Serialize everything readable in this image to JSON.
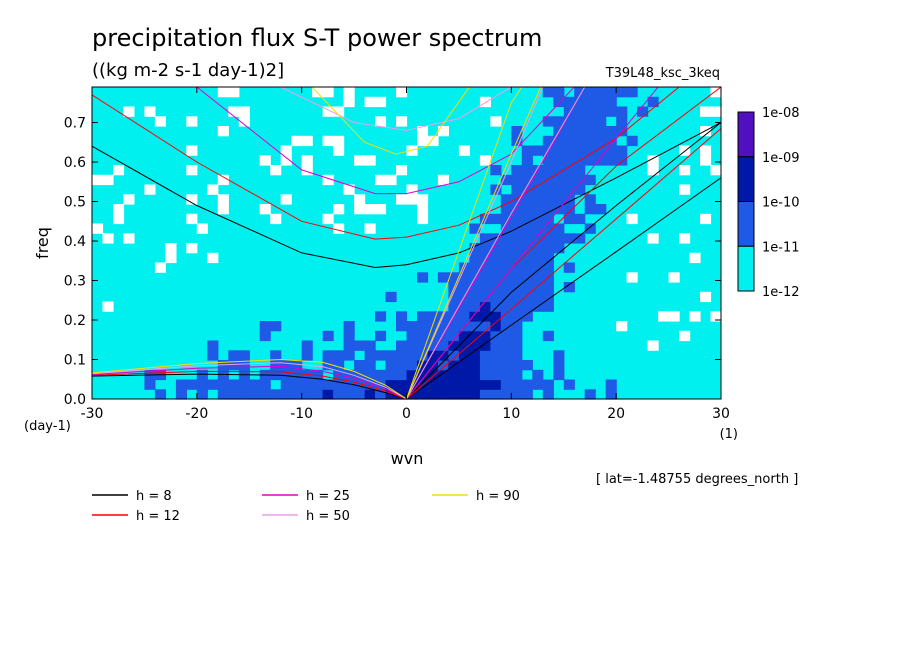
{
  "chart_data": {
    "type": "heatmap",
    "title": "precipitation flux S-T power spectrum",
    "subtitle": "((kg m-2 s-1 day-1)2]",
    "run_label": "T39L48_ksc_3keq",
    "xlabel": "wvn",
    "ylabel": "freq",
    "x_unit_label": "(1)",
    "y_unit_label": "(day-1)",
    "xlim": [
      -30,
      30
    ],
    "ylim": [
      0,
      0.79
    ],
    "x_ticks": [
      -30,
      -20,
      -10,
      0,
      10,
      20,
      30
    ],
    "x_tick_labels": [
      "-30",
      "-20",
      "-10",
      "0",
      "10",
      "20",
      "30"
    ],
    "y_ticks": [
      0,
      0.1,
      0.2,
      0.3,
      0.4,
      0.5,
      0.6,
      0.7
    ],
    "y_tick_labels": [
      "0.0",
      "0.1",
      "0.2",
      "0.3",
      "0.4",
      "0.5",
      "0.6",
      "0.7"
    ],
    "colorbar": {
      "labels": [
        "1e-08",
        "1e-09",
        "1e-10",
        "1e-11",
        "1e-12"
      ],
      "colors": [
        "#5010c0",
        "#0018a8",
        "#1e5ae6",
        "#00f0f0"
      ]
    },
    "background_color": "#00f0f0",
    "annotation": "[ lat=-1.48755 degrees_north ]",
    "legend": [
      {
        "label": "h =  8",
        "color": "#000000"
      },
      {
        "label": "h = 12",
        "color": "#ff0000"
      },
      {
        "label": "h = 25",
        "color": "#e000c8"
      },
      {
        "label": "h = 50",
        "color": "#e8a0e8"
      },
      {
        "label": "h = 90",
        "color": "#f0e000"
      }
    ],
    "dispersion_curves": [
      {
        "h": 8,
        "color": "#000000",
        "rossby": [
          [
            -30,
            0.058
          ],
          [
            -20,
            0.063
          ],
          [
            -12,
            0.06
          ],
          [
            -8,
            0.05
          ],
          [
            -5,
            0.036
          ],
          [
            -2,
            0.016
          ],
          [
            0,
            0
          ]
        ],
        "kelvin": [
          [
            0,
            0
          ],
          [
            10,
            0.187
          ],
          [
            20,
            0.373
          ],
          [
            30,
            0.56
          ]
        ],
        "mrg": [
          [
            0,
            0
          ],
          [
            10,
            0.27
          ],
          [
            20,
            0.49
          ],
          [
            30,
            0.7
          ]
        ],
        "ig": [
          [
            -30,
            0.64
          ],
          [
            -20,
            0.49
          ],
          [
            -10,
            0.37
          ],
          [
            -3,
            0.333
          ],
          [
            0,
            0.34
          ],
          [
            5,
            0.37
          ],
          [
            10,
            0.425
          ],
          [
            20,
            0.56
          ],
          [
            30,
            0.7
          ]
        ]
      },
      {
        "h": 12,
        "color": "#ff0000",
        "rossby": [
          [
            -30,
            0.06
          ],
          [
            -20,
            0.07
          ],
          [
            -12,
            0.069
          ],
          [
            -8,
            0.058
          ],
          [
            -5,
            0.043
          ],
          [
            -2,
            0.02
          ],
          [
            0,
            0
          ]
        ],
        "kelvin": [
          [
            0,
            0
          ],
          [
            10,
            0.228
          ],
          [
            20,
            0.456
          ],
          [
            30,
            0.685
          ]
        ],
        "mrg": [
          [
            0,
            0
          ],
          [
            10,
            0.33
          ],
          [
            20,
            0.59
          ],
          [
            30,
            0.79
          ]
        ],
        "ig": [
          [
            -30,
            0.77
          ],
          [
            -20,
            0.6
          ],
          [
            -10,
            0.45
          ],
          [
            -3,
            0.405
          ],
          [
            0,
            0.41
          ],
          [
            5,
            0.44
          ],
          [
            10,
            0.5
          ],
          [
            20,
            0.66
          ],
          [
            26,
            0.79
          ]
        ]
      },
      {
        "h": 25,
        "color": "#e000c8",
        "rossby": [
          [
            -30,
            0.062
          ],
          [
            -20,
            0.078
          ],
          [
            -12,
            0.083
          ],
          [
            -8,
            0.07
          ],
          [
            -5,
            0.053
          ],
          [
            -2,
            0.025
          ],
          [
            0,
            0
          ]
        ],
        "kelvin": [
          [
            0,
            0
          ],
          [
            10,
            0.33
          ],
          [
            20,
            0.66
          ],
          [
            24,
            0.79
          ]
        ],
        "mrg": [
          [
            0,
            0
          ],
          [
            10,
            0.46
          ],
          [
            17,
            0.79
          ]
        ],
        "ig": [
          [
            -20,
            0.79
          ],
          [
            -10,
            0.58
          ],
          [
            -3,
            0.52
          ],
          [
            0,
            0.52
          ],
          [
            5,
            0.55
          ],
          [
            10,
            0.62
          ],
          [
            16,
            0.79
          ]
        ]
      },
      {
        "h": 50,
        "color": "#e8a0e8",
        "rossby": [
          [
            -30,
            0.064
          ],
          [
            -20,
            0.084
          ],
          [
            -12,
            0.092
          ],
          [
            -8,
            0.082
          ],
          [
            -5,
            0.06
          ],
          [
            -2,
            0.03
          ],
          [
            0,
            0
          ]
        ],
        "kelvin": [
          [
            0,
            0
          ],
          [
            10,
            0.47
          ],
          [
            17,
            0.79
          ]
        ],
        "mrg": [
          [
            0,
            0
          ],
          [
            10,
            0.6
          ],
          [
            13,
            0.79
          ]
        ],
        "ig": [
          [
            -12,
            0.79
          ],
          [
            -5,
            0.7
          ],
          [
            0,
            0.68
          ],
          [
            5,
            0.71
          ],
          [
            10,
            0.79
          ]
        ]
      },
      {
        "h": 90,
        "color": "#f0e000",
        "rossby": [
          [
            -30,
            0.066
          ],
          [
            -20,
            0.09
          ],
          [
            -12,
            0.1
          ],
          [
            -8,
            0.093
          ],
          [
            -5,
            0.07
          ],
          [
            -2,
            0.035
          ],
          [
            0,
            0
          ]
        ],
        "kelvin": [
          [
            0,
            0
          ],
          [
            10,
            0.62
          ],
          [
            12.8,
            0.79
          ]
        ],
        "mrg": [
          [
            0,
            0
          ],
          [
            10,
            0.75
          ],
          [
            11,
            0.79
          ]
        ],
        "ig": [
          [
            -9,
            0.79
          ],
          [
            -4,
            0.65
          ],
          [
            -1,
            0.62
          ],
          [
            2,
            0.64
          ],
          [
            6,
            0.79
          ]
        ]
      }
    ]
  }
}
